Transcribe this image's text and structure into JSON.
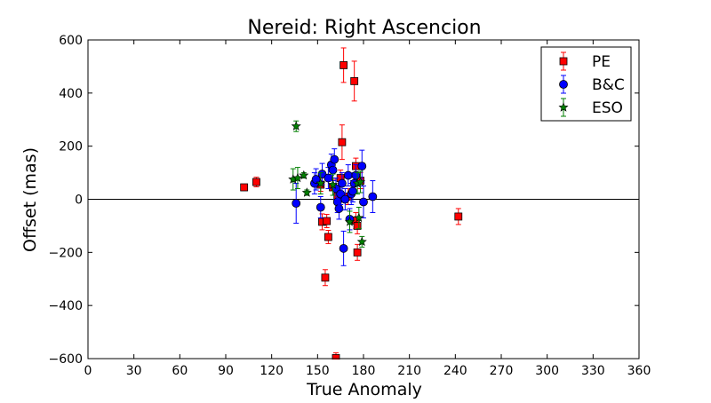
{
  "chart_data": {
    "type": "scatter",
    "title": "Nereid: Right Ascencion",
    "xlabel": "True Anomaly",
    "ylabel": "Offset (mas)",
    "xlim": [
      0,
      360
    ],
    "ylim": [
      -600,
      600
    ],
    "xticks": [
      0,
      30,
      60,
      90,
      120,
      150,
      180,
      210,
      240,
      270,
      300,
      330,
      360
    ],
    "yticks": [
      -600,
      -400,
      -200,
      0,
      200,
      400,
      600
    ],
    "xtick_labels": [
      "0",
      "30",
      "60",
      "90",
      "120",
      "150",
      "180",
      "210",
      "240",
      "270",
      "300",
      "330",
      "360"
    ],
    "ytick_labels": [
      "−600",
      "−400",
      "−200",
      "0",
      "200",
      "400",
      "600"
    ],
    "grid": false,
    "zero_line": true,
    "legend_placement": "top-right",
    "series": [
      {
        "name": "PE",
        "color": "#ff0000",
        "marker": "square",
        "points": [
          {
            "x": 102,
            "y": 45,
            "err": 12
          },
          {
            "x": 110,
            "y": 65,
            "err": 18
          },
          {
            "x": 152,
            "y": 55,
            "err": 25
          },
          {
            "x": 153,
            "y": -85,
            "err": 30
          },
          {
            "x": 155,
            "y": -295,
            "err": 30
          },
          {
            "x": 156,
            "y": -82,
            "err": 25
          },
          {
            "x": 157,
            "y": -142,
            "err": 25
          },
          {
            "x": 160,
            "y": 45,
            "err": 30
          },
          {
            "x": 162,
            "y": -598,
            "err": 20
          },
          {
            "x": 163,
            "y": 10,
            "err": 30
          },
          {
            "x": 165,
            "y": 80,
            "err": 30
          },
          {
            "x": 166,
            "y": 215,
            "err": 65
          },
          {
            "x": 167,
            "y": 505,
            "err": 65
          },
          {
            "x": 170,
            "y": 10,
            "err": 30
          },
          {
            "x": 174,
            "y": 445,
            "err": 75
          },
          {
            "x": 175,
            "y": 125,
            "err": 30
          },
          {
            "x": 175,
            "y": -80,
            "err": 30
          },
          {
            "x": 176,
            "y": -200,
            "err": 30
          },
          {
            "x": 176,
            "y": -100,
            "err": 30
          },
          {
            "x": 178,
            "y": 70,
            "err": 30
          },
          {
            "x": 242,
            "y": -65,
            "err": 30
          }
        ]
      },
      {
        "name": "B&C",
        "color": "#0000ff",
        "marker": "circle",
        "points": [
          {
            "x": 136,
            "y": -15,
            "err": 75
          },
          {
            "x": 148,
            "y": 60,
            "err": 40
          },
          {
            "x": 149,
            "y": 75,
            "err": 40
          },
          {
            "x": 152,
            "y": -30,
            "err": 40
          },
          {
            "x": 153,
            "y": 95,
            "err": 40
          },
          {
            "x": 157,
            "y": 80,
            "err": 40
          },
          {
            "x": 159,
            "y": 130,
            "err": 40
          },
          {
            "x": 160,
            "y": 110,
            "err": 40
          },
          {
            "x": 161,
            "y": 150,
            "err": 40
          },
          {
            "x": 162,
            "y": 40,
            "err": 40
          },
          {
            "x": 163,
            "y": -10,
            "err": 40
          },
          {
            "x": 164,
            "y": -35,
            "err": 40
          },
          {
            "x": 165,
            "y": 20,
            "err": 40
          },
          {
            "x": 166,
            "y": 60,
            "err": 40
          },
          {
            "x": 167,
            "y": -185,
            "err": 65
          },
          {
            "x": 168,
            "y": 0,
            "err": 40
          },
          {
            "x": 170,
            "y": 90,
            "err": 40
          },
          {
            "x": 171,
            "y": -75,
            "err": 40
          },
          {
            "x": 172,
            "y": 20,
            "err": 40
          },
          {
            "x": 173,
            "y": 30,
            "err": 40
          },
          {
            "x": 174,
            "y": 60,
            "err": 40
          },
          {
            "x": 175,
            "y": 90,
            "err": 40
          },
          {
            "x": 179,
            "y": 125,
            "err": 60
          },
          {
            "x": 180,
            "y": -10,
            "err": 60
          },
          {
            "x": 186,
            "y": 10,
            "err": 60
          }
        ]
      },
      {
        "name": "ESO",
        "color": "#007f00",
        "marker": "star",
        "points": [
          {
            "x": 134,
            "y": 75,
            "err": 40
          },
          {
            "x": 136,
            "y": 275,
            "err": 20
          },
          {
            "x": 137,
            "y": 80,
            "err": 40
          },
          {
            "x": 141,
            "y": 90,
            "err": 10
          },
          {
            "x": 143,
            "y": 25,
            "err": 10
          },
          {
            "x": 152,
            "y": 60,
            "err": 40
          },
          {
            "x": 160,
            "y": 55,
            "err": 40
          },
          {
            "x": 171,
            "y": -85,
            "err": 40
          },
          {
            "x": 176,
            "y": 60,
            "err": 40
          },
          {
            "x": 177,
            "y": -70,
            "err": 40
          },
          {
            "x": 178,
            "y": 65,
            "err": 40
          },
          {
            "x": 179,
            "y": -160,
            "err": 20
          }
        ]
      }
    ]
  }
}
